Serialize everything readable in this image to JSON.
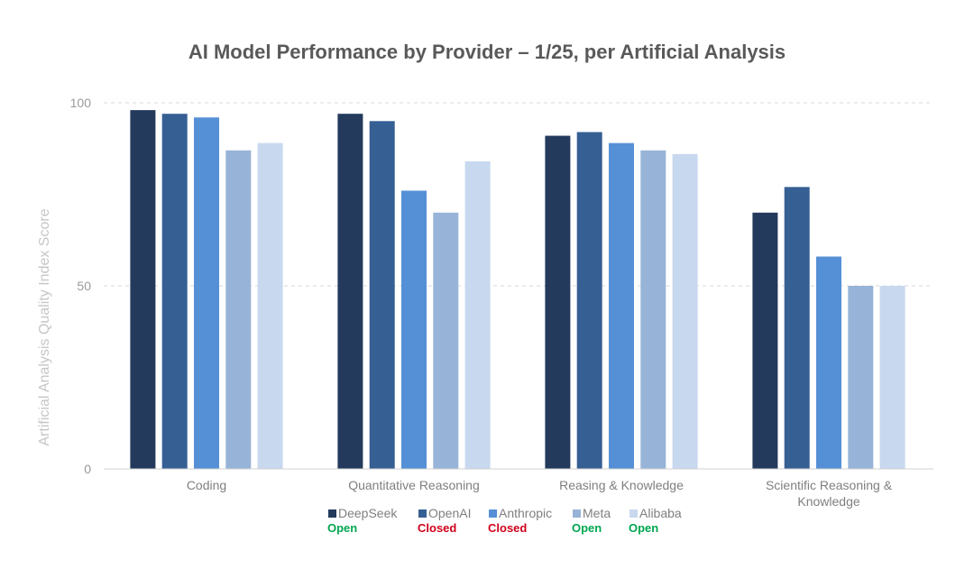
{
  "chart_data": {
    "type": "bar",
    "title": "AI Model Performance by Provider – 1/25, per Artificial Analysis",
    "xlabel": "",
    "ylabel": "Artificial Analysis Quality Index Score",
    "ylim": [
      0,
      100
    ],
    "yticks": [
      0,
      50,
      100
    ],
    "grid": true,
    "legend_position": "bottom",
    "categories": [
      [
        "Coding"
      ],
      [
        "Quantitative Reasoning"
      ],
      [
        "Reasing & Knowledge"
      ],
      [
        "Scientific Reasoning &",
        "Knowledge"
      ]
    ],
    "series": [
      {
        "name": "DeepSeek",
        "status": "Open",
        "status_color": "#00a650",
        "color": "#243a5c",
        "values": [
          98,
          97,
          91,
          70
        ]
      },
      {
        "name": "OpenAI",
        "status": "Closed",
        "status_color": "#d0021b",
        "color": "#365f93",
        "values": [
          97,
          95,
          92,
          77
        ]
      },
      {
        "name": "Anthropic",
        "status": "Closed",
        "status_color": "#d0021b",
        "color": "#5590d6",
        "values": [
          96,
          76,
          89,
          58
        ]
      },
      {
        "name": "Meta",
        "status": "Open",
        "status_color": "#00a650",
        "color": "#97b4d8",
        "values": [
          87,
          70,
          87,
          50
        ]
      },
      {
        "name": "Alibaba",
        "status": "Open",
        "status_color": "#00a650",
        "color": "#c7d8ef",
        "values": [
          89,
          84,
          86,
          50
        ]
      }
    ]
  }
}
